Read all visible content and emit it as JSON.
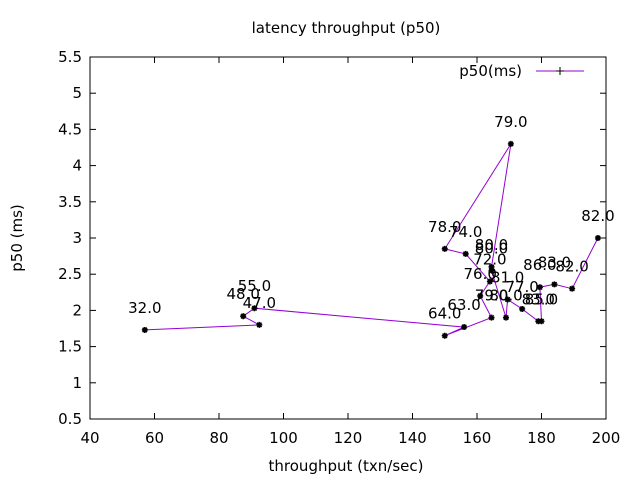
{
  "chart_data": {
    "type": "line",
    "title": "latency throughput (p50)",
    "xlabel": "throughput (txn/sec)",
    "ylabel": "p50 (ms)",
    "xlim": [
      40,
      200
    ],
    "ylim": [
      0.5,
      5.5
    ],
    "xticks": [
      "40",
      "60",
      "80",
      "100",
      "120",
      "140",
      "160",
      "180",
      "200"
    ],
    "yticks": [
      "0.5",
      "1",
      "1.5",
      "2",
      "2.5",
      "3",
      "3.5",
      "4",
      "4.5",
      "5",
      "5.5"
    ],
    "legend_position": "top-right",
    "grid": false,
    "colors": {
      "series": "#9400d3",
      "marker": "#000000"
    },
    "series": [
      {
        "name": "p50(ms)",
        "points": [
          {
            "x": 57.0,
            "y": 1.73,
            "label": "32.0"
          },
          {
            "x": 92.5,
            "y": 1.8,
            "label": "47.0"
          },
          {
            "x": 87.5,
            "y": 1.92,
            "label": "48.0"
          },
          {
            "x": 91.0,
            "y": 2.03,
            "label": "55.0"
          },
          {
            "x": 156.0,
            "y": 1.77,
            "label": "63.0"
          },
          {
            "x": 150.0,
            "y": 1.65,
            "label": "64.0"
          },
          {
            "x": 164.5,
            "y": 1.9,
            "label": "79.0"
          },
          {
            "x": 161.0,
            "y": 2.2,
            "label": "76.0"
          },
          {
            "x": 164.0,
            "y": 2.4,
            "label": "72.0"
          },
          {
            "x": 156.5,
            "y": 2.78,
            "label": "74.0"
          },
          {
            "x": 150.0,
            "y": 2.85,
            "label": "78.0"
          },
          {
            "x": 170.5,
            "y": 4.3,
            "label": "79.0"
          },
          {
            "x": 164.5,
            "y": 2.6,
            "label": "80.0"
          },
          {
            "x": 164.5,
            "y": 2.55,
            "label": "80.0"
          },
          {
            "x": 169.0,
            "y": 1.9,
            "label": "80.0"
          },
          {
            "x": 169.5,
            "y": 2.15,
            "label": "81.0"
          },
          {
            "x": 174.0,
            "y": 2.02,
            "label": "77.0"
          },
          {
            "x": 179.0,
            "y": 1.85,
            "label": "83.0"
          },
          {
            "x": 180.0,
            "y": 1.85,
            "label": "85.0"
          },
          {
            "x": 179.5,
            "y": 2.32,
            "label": "86.0"
          },
          {
            "x": 184.0,
            "y": 2.36,
            "label": "83.0"
          },
          {
            "x": 189.5,
            "y": 2.3,
            "label": "82.0"
          },
          {
            "x": 197.5,
            "y": 3.0,
            "label": "82.0"
          }
        ]
      }
    ]
  }
}
